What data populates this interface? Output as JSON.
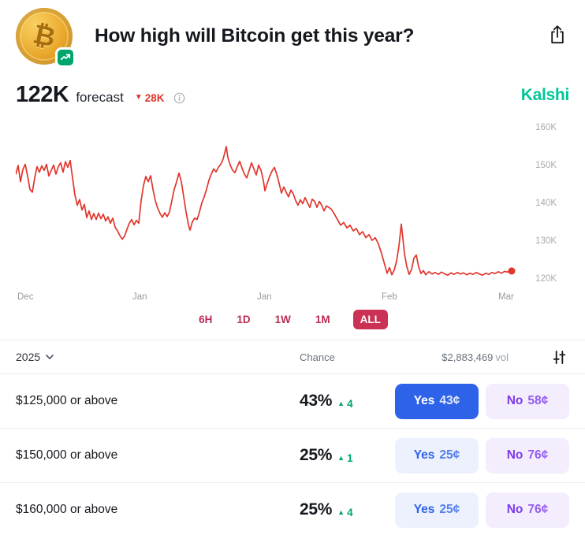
{
  "header": {
    "title": "How high will Bitcoin get this year?",
    "coin_symbol": "₿"
  },
  "forecast": {
    "value": "122K",
    "label": "forecast",
    "change": "28K",
    "direction": "down",
    "brand": "Kalshi"
  },
  "chart_data": {
    "type": "line",
    "title": "Bitcoin price forecast history",
    "line_color": "#e0362c",
    "x_labels": [
      "Dec",
      "Jan",
      "Jan",
      "Feb",
      "Mar"
    ],
    "y_labels": [
      "160K",
      "150K",
      "140K",
      "130K",
      "120K"
    ],
    "ylim": [
      118,
      163
    ],
    "grid": false,
    "legend": "none",
    "points": [
      [
        0,
        148
      ],
      [
        3,
        150.3
      ],
      [
        6,
        146
      ],
      [
        9,
        149.2
      ],
      [
        12,
        150.6
      ],
      [
        15,
        147.5
      ],
      [
        18,
        144
      ],
      [
        21,
        143.2
      ],
      [
        24,
        147
      ],
      [
        27,
        150
      ],
      [
        30,
        148.5
      ],
      [
        33,
        150.2
      ],
      [
        36,
        149
      ],
      [
        39,
        150.6
      ],
      [
        42,
        147.5
      ],
      [
        45,
        149
      ],
      [
        48,
        150.4
      ],
      [
        51,
        148
      ],
      [
        54,
        150
      ],
      [
        57,
        151
      ],
      [
        60,
        148.5
      ],
      [
        63,
        151.3
      ],
      [
        66,
        149.8
      ],
      [
        69,
        151.6
      ],
      [
        72,
        147
      ],
      [
        75,
        142.5
      ],
      [
        78,
        139.8
      ],
      [
        81,
        141.3
      ],
      [
        84,
        138.5
      ],
      [
        87,
        140
      ],
      [
        90,
        136.5
      ],
      [
        93,
        138.3
      ],
      [
        96,
        136
      ],
      [
        99,
        137.6
      ],
      [
        102,
        136
      ],
      [
        105,
        137.7
      ],
      [
        108,
        136.2
      ],
      [
        111,
        137.4
      ],
      [
        114,
        135.6
      ],
      [
        117,
        136.7
      ],
      [
        120,
        135
      ],
      [
        123,
        136.4
      ],
      [
        126,
        134
      ],
      [
        129,
        133
      ],
      [
        132,
        131.8
      ],
      [
        135,
        130.8
      ],
      [
        138,
        131.6
      ],
      [
        141,
        133.4
      ],
      [
        144,
        135
      ],
      [
        147,
        136
      ],
      [
        150,
        134.6
      ],
      [
        153,
        135.8
      ],
      [
        156,
        135
      ],
      [
        159,
        141
      ],
      [
        162,
        145
      ],
      [
        165,
        147.4
      ],
      [
        168,
        146
      ],
      [
        171,
        147.6
      ],
      [
        174,
        144
      ],
      [
        177,
        141
      ],
      [
        180,
        139
      ],
      [
        183,
        137.6
      ],
      [
        186,
        136.6
      ],
      [
        189,
        137.8
      ],
      [
        192,
        136.8
      ],
      [
        195,
        138
      ],
      [
        198,
        141
      ],
      [
        201,
        144
      ],
      [
        204,
        146
      ],
      [
        207,
        148.3
      ],
      [
        210,
        146
      ],
      [
        213,
        142
      ],
      [
        216,
        138
      ],
      [
        219,
        134.6
      ],
      [
        221,
        133.2
      ],
      [
        224,
        135.4
      ],
      [
        227,
        136.4
      ],
      [
        230,
        136
      ],
      [
        233,
        138
      ],
      [
        236,
        140.4
      ],
      [
        239,
        142
      ],
      [
        242,
        144
      ],
      [
        245,
        146.4
      ],
      [
        248,
        148
      ],
      [
        251,
        149.4
      ],
      [
        254,
        148.6
      ],
      [
        257,
        149.8
      ],
      [
        260,
        150.6
      ],
      [
        263,
        152
      ],
      [
        265,
        153.6
      ],
      [
        267,
        155.3
      ],
      [
        269,
        152.4
      ],
      [
        272,
        150.4
      ],
      [
        275,
        149
      ],
      [
        278,
        148.4
      ],
      [
        281,
        150
      ],
      [
        284,
        151.4
      ],
      [
        287,
        149.6
      ],
      [
        290,
        148
      ],
      [
        293,
        147
      ],
      [
        296,
        149
      ],
      [
        299,
        151
      ],
      [
        302,
        149.4
      ],
      [
        305,
        147.8
      ],
      [
        308,
        150.4
      ],
      [
        311,
        149
      ],
      [
        314,
        146.4
      ],
      [
        316,
        143.6
      ],
      [
        319,
        145.6
      ],
      [
        322,
        147.4
      ],
      [
        325,
        148.8
      ],
      [
        328,
        149.8
      ],
      [
        331,
        148
      ],
      [
        334,
        145.6
      ],
      [
        337,
        143
      ],
      [
        340,
        144.6
      ],
      [
        343,
        143.2
      ],
      [
        346,
        142
      ],
      [
        349,
        143.8
      ],
      [
        352,
        142.8
      ],
      [
        355,
        141
      ],
      [
        358,
        139.8
      ],
      [
        361,
        141.2
      ],
      [
        364,
        140.2
      ],
      [
        367,
        141.8
      ],
      [
        370,
        140.4
      ],
      [
        373,
        139.2
      ],
      [
        376,
        141.4
      ],
      [
        379,
        140.8
      ],
      [
        382,
        139.2
      ],
      [
        385,
        140.8
      ],
      [
        388,
        139.8
      ],
      [
        391,
        138.3
      ],
      [
        394,
        139.6
      ],
      [
        397,
        139.2
      ],
      [
        400,
        138.8
      ],
      [
        404,
        137.5
      ],
      [
        408,
        136
      ],
      [
        412,
        134.5
      ],
      [
        416,
        135.2
      ],
      [
        420,
        133.8
      ],
      [
        424,
        134.5
      ],
      [
        428,
        133
      ],
      [
        432,
        133.6
      ],
      [
        436,
        132
      ],
      [
        440,
        132.8
      ],
      [
        444,
        131.2
      ],
      [
        448,
        132
      ],
      [
        452,
        130.5
      ],
      [
        456,
        131.2
      ],
      [
        460,
        129.5
      ],
      [
        464,
        127
      ],
      [
        468,
        124
      ],
      [
        471,
        121.8
      ],
      [
        474,
        123.3
      ],
      [
        477,
        121.4
      ],
      [
        480,
        122.6
      ],
      [
        483,
        125
      ],
      [
        486,
        129
      ],
      [
        489,
        134.8
      ],
      [
        491,
        131
      ],
      [
        493,
        127
      ],
      [
        496,
        123.5
      ],
      [
        499,
        121.5
      ],
      [
        502,
        122.8
      ],
      [
        505,
        125.8
      ],
      [
        508,
        126.6
      ],
      [
        511,
        123.5
      ],
      [
        514,
        121.7
      ],
      [
        517,
        122.5
      ],
      [
        520,
        121.4
      ],
      [
        524,
        122.2
      ],
      [
        528,
        121.6
      ],
      [
        532,
        122
      ],
      [
        536,
        121.5
      ],
      [
        540,
        122.1
      ],
      [
        544,
        121.6
      ],
      [
        548,
        121.3
      ],
      [
        552,
        121.9
      ],
      [
        556,
        121.5
      ],
      [
        560,
        122
      ],
      [
        564,
        121.6
      ],
      [
        568,
        121.9
      ],
      [
        572,
        121.4
      ],
      [
        576,
        121.8
      ],
      [
        580,
        121.5
      ],
      [
        584,
        122
      ],
      [
        588,
        121.6
      ],
      [
        592,
        121.3
      ],
      [
        596,
        121.8
      ],
      [
        600,
        121.5
      ],
      [
        604,
        122
      ],
      [
        608,
        121.7
      ],
      [
        612,
        122.2
      ],
      [
        616,
        121.8
      ],
      [
        620,
        122.3
      ],
      [
        624,
        122.1
      ],
      [
        627,
        122.8
      ],
      [
        629,
        122.4
      ]
    ]
  },
  "time_filters": {
    "options": [
      "6H",
      "1D",
      "1W",
      "1M",
      "ALL"
    ],
    "selected": "ALL"
  },
  "table": {
    "year": "2025",
    "chance_header": "Chance",
    "volume": "$2,883,469",
    "volume_suffix": "vol",
    "rows": [
      {
        "label": "$125,000 or above",
        "chance": "43%",
        "delta": "4",
        "yes_label": "Yes",
        "yes_price": "43¢",
        "no_label": "No",
        "no_price": "58¢"
      },
      {
        "label": "$150,000 or above",
        "chance": "25%",
        "delta": "1",
        "yes_label": "Yes",
        "yes_price": "25¢",
        "no_label": "No",
        "no_price": "76¢"
      },
      {
        "label": "$160,000 or above",
        "chance": "25%",
        "delta": "4",
        "yes_label": "Yes",
        "yes_price": "25¢",
        "no_label": "No",
        "no_price": "76¢"
      }
    ]
  },
  "icons": {
    "triangle_down": "▼",
    "triangle_up": "▲"
  },
  "colors": {
    "chart-red": "#e0362c",
    "down-red": "#e0362c",
    "up-green": "#00a56e",
    "brand-green": "#00c795",
    "filter-red": "#bb2d53",
    "filter-selected-bg": "#ca3155",
    "yes-blue": "#2e63e9",
    "yes-light-bg": "#edf1fe",
    "no-purple": "#7c3aed",
    "no-light-bg": "#f3edfd"
  }
}
